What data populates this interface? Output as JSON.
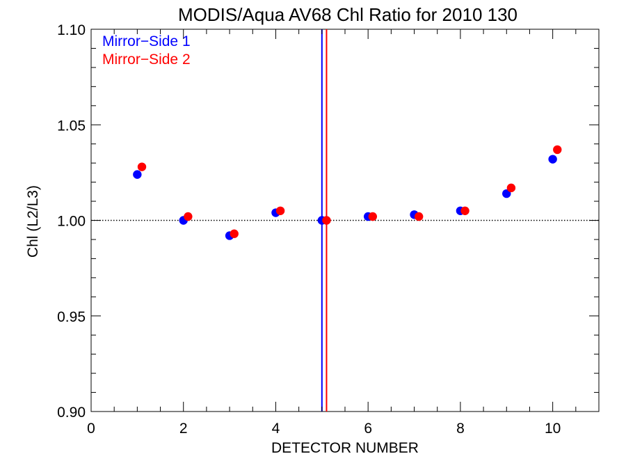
{
  "chart_data": {
    "type": "scatter",
    "title": "MODIS/Aqua AV68 Chl Ratio for 2010 130",
    "xlabel": "DETECTOR NUMBER",
    "ylabel": "Chl (L2/L3)",
    "xlim": [
      0,
      11
    ],
    "ylim": [
      0.9,
      1.1
    ],
    "x_ticks": [
      0,
      2,
      4,
      6,
      8,
      10
    ],
    "x_tick_labels": [
      "0",
      "2",
      "4",
      "6",
      "8",
      "10"
    ],
    "x_minor_step": 0.5,
    "y_ticks": [
      0.9,
      0.95,
      1.0,
      1.05,
      1.1
    ],
    "y_tick_labels": [
      "0.90",
      "0.95",
      "1.00",
      "1.05",
      "1.10"
    ],
    "y_minor_step": 0.01,
    "grid": false,
    "legend_position": "top-left",
    "reference_line": {
      "y": 1.0,
      "style": "dotted",
      "color": "#000000"
    },
    "series": [
      {
        "name": "Mirror−Side 1",
        "color": "#0000ff",
        "x": [
          1,
          2,
          3,
          4,
          5,
          6,
          7,
          8,
          9,
          10
        ],
        "y": [
          1.024,
          1.0,
          0.992,
          1.004,
          1.0,
          1.002,
          1.003,
          1.005,
          1.014,
          1.032
        ],
        "vertical_line_x": 5.0
      },
      {
        "name": "Mirror−Side 2",
        "color": "#ff0000",
        "x": [
          1.1,
          2.1,
          3.1,
          4.1,
          5.1,
          6.1,
          7.1,
          8.1,
          9.1,
          10.1
        ],
        "y": [
          1.028,
          1.002,
          0.993,
          1.005,
          1.0,
          1.002,
          1.002,
          1.005,
          1.017,
          1.037
        ],
        "vertical_line_x": 5.1
      }
    ]
  }
}
